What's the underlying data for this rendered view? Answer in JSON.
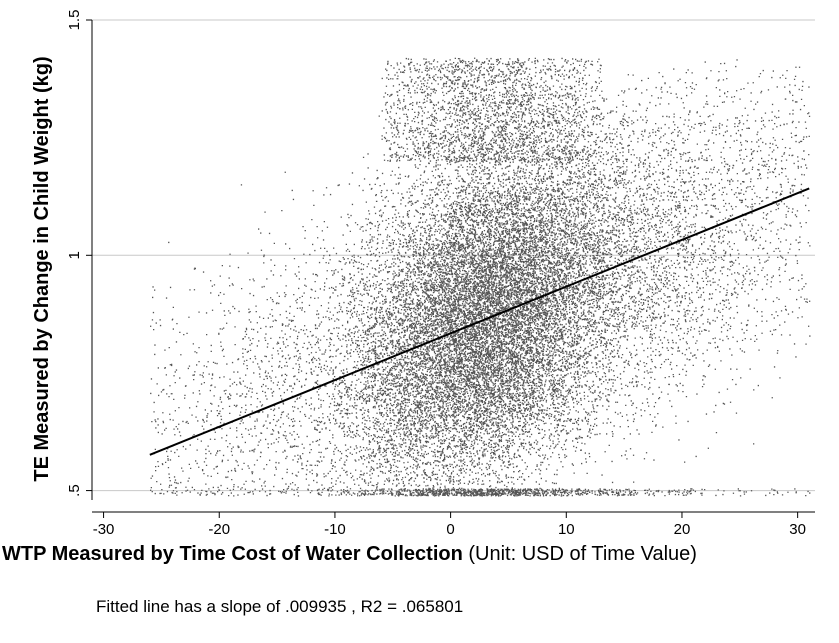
{
  "chart_data": {
    "type": "scatter",
    "xlabel_bold": "WTP Measured by Time Cost of Water Collection",
    "xlabel_rest": " (Unit: USD of Time Value)",
    "ylabel": "TE Measured by Change in Child Weight (kg)",
    "xlim": [
      -31,
      31.5
    ],
    "ylim": [
      0.48,
      1.5
    ],
    "xticks": [
      -30,
      -20,
      -10,
      0,
      10,
      20,
      30
    ],
    "xtick_labels": [
      "-30",
      "-20",
      "-10",
      "0",
      "10",
      "20",
      "30"
    ],
    "yticks": [
      0.5,
      1,
      1.5
    ],
    "ytick_labels": [
      ".5",
      "1",
      "1.5"
    ],
    "grid": "horizontal",
    "point_color": "#555555",
    "line_color": "#000000",
    "scatter_extent": {
      "x": [
        -26,
        31
      ],
      "y": [
        0.49,
        1.42
      ]
    },
    "fitted_line": {
      "x": [
        -26,
        31
      ],
      "y": [
        0.576,
        1.142
      ]
    },
    "note": "Fitted line has a slope of .009935 , R2 = .065801"
  }
}
